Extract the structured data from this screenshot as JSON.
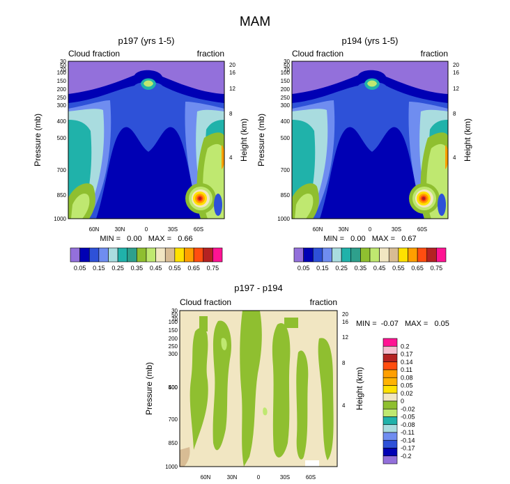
{
  "figure": {
    "title": "MAM"
  },
  "colors": {
    "purple": "#9370db",
    "navy": "#0000b4",
    "blue1": "#2e51d8",
    "blue2": "#6f8df0",
    "lightcyan": "#a9dcdf",
    "teal": "#20b2aa",
    "green": "#8fbf30",
    "lime": "#bfe870",
    "cream": "#f1e6c2",
    "tan": "#d8bc94",
    "yellow": "#ffe100",
    "orange": "#ff9f00",
    "redorange": "#ff4d10",
    "darkred": "#b42222",
    "pink": "#f6a7c6",
    "magenta": "#ff1493"
  },
  "chart_data": [
    {
      "type": "heatmap",
      "title": "p197 (yrs 1-5)",
      "left_label": "Cloud fraction",
      "right_label": "fraction",
      "ylabel": "Pressure (mb)",
      "ylabel_right": "Height (km)",
      "yticks": [
        "30",
        "50",
        "70",
        "100",
        "150",
        "200",
        "250",
        "300",
        "400",
        "500",
        "700",
        "850",
        "1000"
      ],
      "yticks_right": [
        "20",
        "16",
        "12",
        "8",
        "4"
      ],
      "xticks": [
        "60N",
        "30N",
        "0",
        "30S",
        "60S"
      ],
      "stats": "MIN =   0.00   MAX =   0.66",
      "min": 0.0,
      "max": 0.66,
      "colorbar_levels": [
        0.05,
        0.1,
        0.15,
        0.2,
        0.25,
        0.3,
        0.35,
        0.4,
        0.45,
        0.5,
        0.55,
        0.6,
        0.65,
        0.7,
        0.75
      ],
      "colorbar_labels": [
        "0.05",
        "0.15",
        "0.25",
        "0.35",
        "0.45",
        "0.55",
        "0.65",
        "0.75"
      ],
      "colorbar_colors": [
        "#9370db",
        "#0000b4",
        "#2e51d8",
        "#6f8df0",
        "#a9dcdf",
        "#20b2aa",
        "#2ea08c",
        "#8fbf30",
        "#bfe870",
        "#f1e6c2",
        "#d8bc94",
        "#ffe100",
        "#ff9f00",
        "#ff4d10",
        "#b42222",
        "#ff1493"
      ]
    },
    {
      "type": "heatmap",
      "title": "p194 (yrs 1-5)",
      "left_label": "Cloud fraction",
      "right_label": "fraction",
      "ylabel": "Pressure (mb)",
      "ylabel_right": "Height (km)",
      "yticks": [
        "30",
        "50",
        "70",
        "100",
        "150",
        "200",
        "250",
        "300",
        "400",
        "500",
        "700",
        "850",
        "1000"
      ],
      "yticks_right": [
        "20",
        "16",
        "12",
        "8",
        "4"
      ],
      "xticks": [
        "60N",
        "30N",
        "0",
        "30S",
        "60S"
      ],
      "stats": "MIN =   0.00   MAX =   0.67",
      "min": 0.0,
      "max": 0.67,
      "colorbar_levels": [
        0.05,
        0.1,
        0.15,
        0.2,
        0.25,
        0.3,
        0.35,
        0.4,
        0.45,
        0.5,
        0.55,
        0.6,
        0.65,
        0.7,
        0.75
      ],
      "colorbar_labels": [
        "0.05",
        "0.15",
        "0.25",
        "0.35",
        "0.45",
        "0.55",
        "0.65",
        "0.75"
      ],
      "colorbar_colors": [
        "#9370db",
        "#0000b4",
        "#2e51d8",
        "#6f8df0",
        "#a9dcdf",
        "#20b2aa",
        "#2ea08c",
        "#8fbf30",
        "#bfe870",
        "#f1e6c2",
        "#d8bc94",
        "#ffe100",
        "#ff9f00",
        "#ff4d10",
        "#b42222",
        "#ff1493"
      ]
    },
    {
      "type": "heatmap",
      "title": "p197 - p194",
      "left_label": "Cloud fraction",
      "right_label": "fraction",
      "ylabel": "Pressure (mb)",
      "ylabel_right": "Height (km)",
      "yticks": [
        "30",
        "50",
        "70",
        "100",
        "150",
        "200",
        "250",
        "300",
        "400",
        "500",
        "700",
        "850",
        "1000"
      ],
      "yticks_right": [
        "20",
        "16",
        "12",
        "8",
        "4"
      ],
      "xticks": [
        "60N",
        "30N",
        "0",
        "30S",
        "60S"
      ],
      "stats": "MIN =  -0.07   MAX =   0.05",
      "min": -0.07,
      "max": 0.05,
      "colorbar_labels": [
        "0.2",
        "0.17",
        "0.14",
        "0.11",
        "0.08",
        "0.05",
        "0.02",
        "0",
        "-0.02",
        "-0.05",
        "-0.08",
        "-0.11",
        "-0.14",
        "-0.17",
        "-0.2"
      ],
      "colorbar_colors": [
        "#ff1493",
        "#f6c0d0",
        "#b42222",
        "#ff4d10",
        "#ff9f00",
        "#ffb300",
        "#ffe100",
        "#f1e6c2",
        "#8fbf30",
        "#bfe870",
        "#20b2aa",
        "#a9dcdf",
        "#6f8df0",
        "#2e51d8",
        "#0000b4",
        "#9370db"
      ]
    }
  ]
}
